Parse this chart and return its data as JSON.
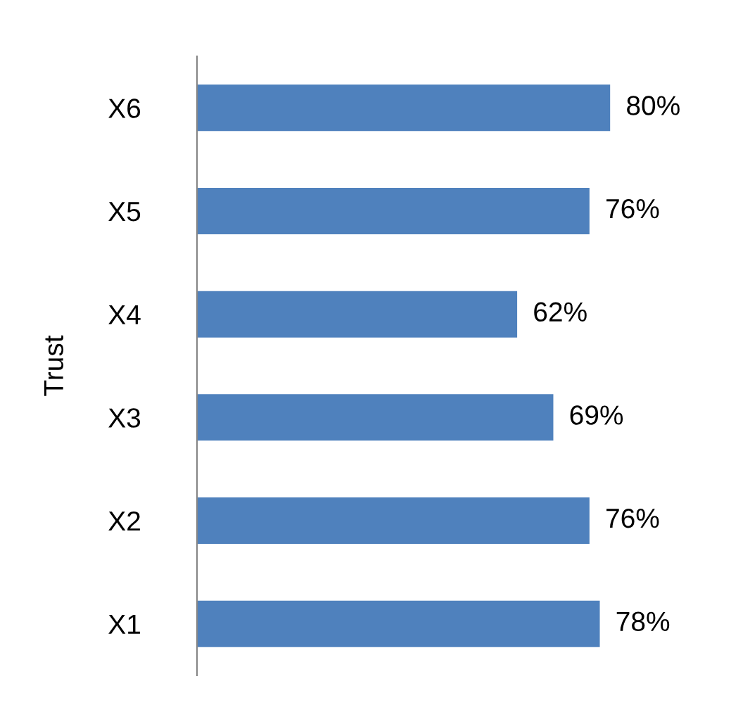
{
  "chart_data": {
    "type": "bar",
    "orientation": "horizontal",
    "ylabel": "Trust",
    "categories": [
      "X6",
      "X5",
      "X4",
      "X3",
      "X2",
      "X1"
    ],
    "values": [
      80,
      76,
      62,
      69,
      76,
      78
    ],
    "value_labels": [
      "80%",
      "76%",
      "62%",
      "69%",
      "76%",
      "78%"
    ],
    "color": "#4f81bd",
    "tick_labels": "y",
    "grid": false,
    "legend": false
  }
}
